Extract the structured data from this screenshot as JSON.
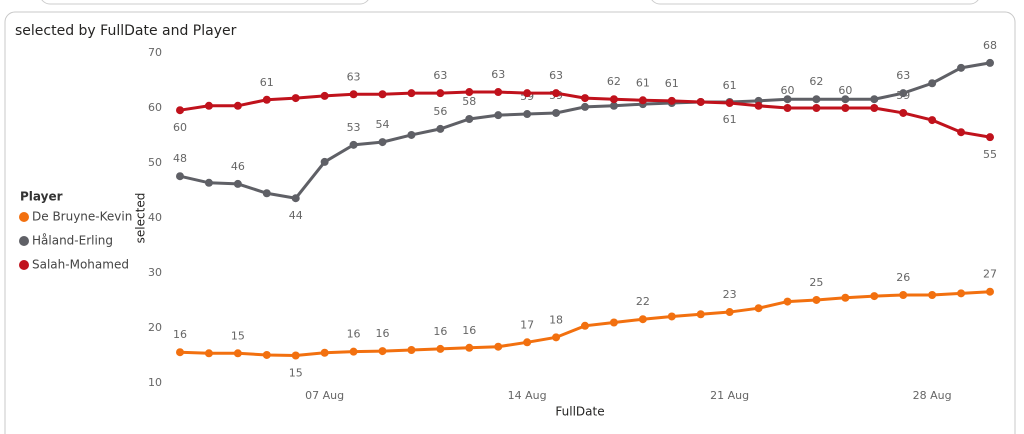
{
  "chart_data": {
    "type": "line",
    "title": "selected by FullDate and Player",
    "x_label": "FullDate",
    "y_label": "selected",
    "legend_title": "Player",
    "legend": "left",
    "grid": false,
    "categories": [
      null,
      null,
      null,
      null,
      null,
      "07 Aug",
      null,
      null,
      null,
      null,
      null,
      null,
      "14 Aug",
      null,
      null,
      null,
      null,
      null,
      null,
      "21 Aug",
      null,
      null,
      null,
      null,
      null,
      null,
      "28 Aug",
      null,
      null
    ],
    "ylim": [
      10,
      70
    ],
    "yticks": [
      10,
      20,
      30,
      40,
      50,
      60,
      70
    ],
    "series": [
      {
        "name": "De Bruyne-Kevin",
        "color": "#f2700f",
        "values": [
          15.6,
          15.4,
          15.4,
          15.1,
          15.0,
          15.5,
          15.7,
          15.8,
          16.0,
          16.2,
          16.4,
          16.6,
          17.4,
          18.3,
          20.4,
          21.0,
          21.6,
          22.1,
          22.5,
          22.9,
          23.6,
          24.8,
          25.1,
          25.5,
          25.8,
          26.0,
          26.0,
          26.3,
          26.6
        ],
        "value_labels": [
          "16",
          null,
          "15",
          null,
          "15",
          null,
          "16",
          "16",
          null,
          "16",
          "16",
          null,
          "17",
          "18",
          null,
          null,
          "22",
          null,
          null,
          "23",
          null,
          null,
          "25",
          null,
          null,
          "26",
          null,
          null,
          "27"
        ]
      },
      {
        "name": "Håland-Erling",
        "color": "#5f6066",
        "values": [
          47.6,
          46.4,
          46.2,
          44.5,
          43.6,
          50.2,
          53.3,
          53.8,
          55.1,
          56.2,
          58.0,
          58.7,
          58.9,
          59.1,
          60.2,
          60.4,
          60.7,
          60.9,
          61.1,
          61.1,
          61.3,
          61.6,
          61.6,
          61.6,
          61.6,
          62.7,
          64.5,
          67.3,
          68.2
        ],
        "value_labels": [
          "48",
          null,
          "46",
          null,
          "44",
          null,
          "53",
          "54",
          null,
          "56",
          "58",
          null,
          "59",
          "59",
          null,
          null,
          null,
          null,
          null,
          "61",
          null,
          null,
          "62",
          null,
          null,
          "63",
          null,
          null,
          "68"
        ]
      },
      {
        "name": "Salah-Mohamed",
        "color": "#c0121c",
        "values": [
          59.6,
          60.4,
          60.4,
          61.5,
          61.8,
          62.2,
          62.5,
          62.5,
          62.7,
          62.7,
          62.9,
          62.9,
          62.7,
          62.7,
          61.8,
          61.6,
          61.4,
          61.3,
          61.1,
          60.9,
          60.4,
          60.0,
          60.0,
          60.0,
          60.0,
          59.1,
          57.8,
          55.6,
          54.7
        ],
        "value_labels": [
          "60",
          null,
          null,
          "61",
          null,
          null,
          "63",
          null,
          null,
          "63",
          null,
          "63",
          null,
          "63",
          null,
          "62",
          "61",
          "61",
          null,
          "61",
          null,
          "60",
          null,
          "60",
          null,
          "59",
          null,
          null,
          "55"
        ]
      }
    ]
  }
}
